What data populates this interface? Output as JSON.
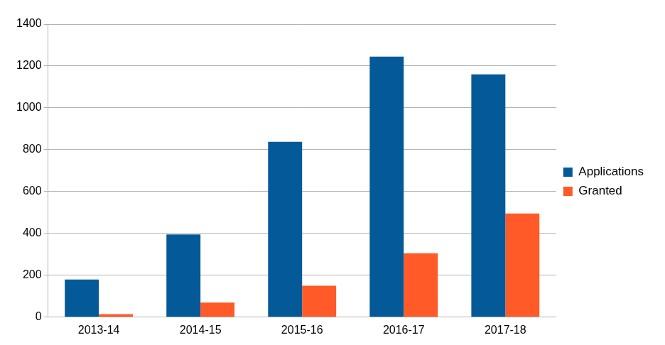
{
  "chart_data": {
    "type": "bar",
    "categories": [
      "2013-14",
      "2014-15",
      "2015-16",
      "2016-17",
      "2017-18"
    ],
    "series": [
      {
        "name": "Applications",
        "color": "#045a98",
        "values": [
          180,
          395,
          838,
          1245,
          1160
        ]
      },
      {
        "name": "Granted",
        "color": "#ff5a28",
        "values": [
          15,
          70,
          150,
          305,
          495
        ]
      }
    ],
    "ylim": [
      0,
      1400
    ],
    "yticks": [
      0,
      200,
      400,
      600,
      800,
      1000,
      1200,
      1400
    ],
    "grid": true,
    "legend": "right"
  }
}
